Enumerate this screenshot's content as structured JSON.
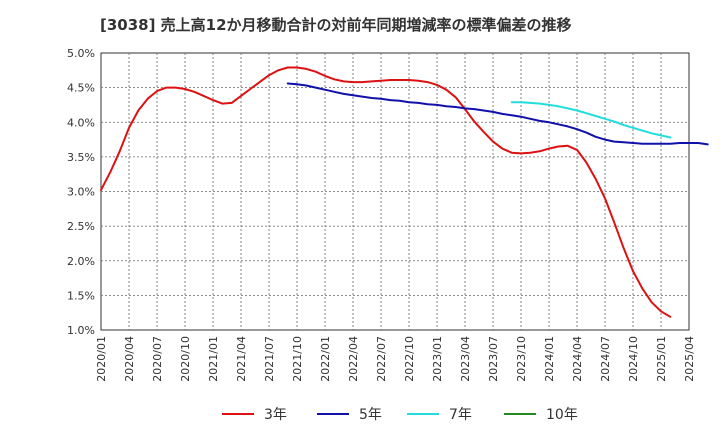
{
  "chart_data": {
    "type": "line",
    "title": "[3038]  売上高12か月移動合計の対前年同期増減率の標準偏差の推移",
    "xlabel": "",
    "ylabel": "",
    "x_ticks": [
      "2020/01",
      "2020/04",
      "2020/07",
      "2020/10",
      "2021/01",
      "2021/04",
      "2021/07",
      "2021/10",
      "2022/01",
      "2022/04",
      "2022/07",
      "2022/10",
      "2023/01",
      "2023/04",
      "2023/07",
      "2023/10",
      "2024/01",
      "2024/04",
      "2024/07",
      "2024/10",
      "2025/01",
      "2025/04"
    ],
    "y_ticks": [
      "1.0%",
      "1.5%",
      "2.0%",
      "2.5%",
      "3.0%",
      "3.5%",
      "4.0%",
      "4.5%",
      "5.0%"
    ],
    "ylim": [
      1.0,
      5.0
    ],
    "y_unit": "%",
    "grid": true,
    "legend_position": "bottom",
    "series": [
      {
        "name": "3年",
        "color": "#dd1111",
        "start": "2020/01",
        "values": [
          3.02,
          3.28,
          3.58,
          3.92,
          4.17,
          4.34,
          4.45,
          4.5,
          4.5,
          4.48,
          4.44,
          4.38,
          4.32,
          4.27,
          4.28,
          4.38,
          4.48,
          4.58,
          4.68,
          4.75,
          4.79,
          4.79,
          4.77,
          4.73,
          4.67,
          4.62,
          4.59,
          4.58,
          4.58,
          4.59,
          4.6,
          4.61,
          4.61,
          4.61,
          4.6,
          4.58,
          4.54,
          4.47,
          4.36,
          4.19,
          4.01,
          3.86,
          3.72,
          3.62,
          3.56,
          3.55,
          3.56,
          3.58,
          3.62,
          3.65,
          3.66,
          3.6,
          3.42,
          3.18,
          2.9,
          2.55,
          2.18,
          1.85,
          1.6,
          1.4,
          1.27,
          1.19
        ]
      },
      {
        "name": "5年",
        "color": "#1111aa",
        "start": "2021/09",
        "values": [
          4.56,
          4.55,
          4.53,
          4.5,
          4.47,
          4.44,
          4.41,
          4.39,
          4.37,
          4.35,
          4.34,
          4.32,
          4.31,
          4.29,
          4.28,
          4.26,
          4.25,
          4.23,
          4.22,
          4.2,
          4.19,
          4.17,
          4.15,
          4.12,
          4.1,
          4.08,
          4.05,
          4.02,
          4.0,
          3.97,
          3.94,
          3.9,
          3.85,
          3.79,
          3.75,
          3.72,
          3.71,
          3.7,
          3.69,
          3.69,
          3.69,
          3.69,
          3.7,
          3.7,
          3.7,
          3.68
        ]
      },
      {
        "name": "7年",
        "color": "#22dddd",
        "start": "2023/09",
        "values": [
          4.29,
          4.29,
          4.28,
          4.27,
          4.25,
          4.23,
          4.2,
          4.17,
          4.13,
          4.09,
          4.05,
          4.01,
          3.96,
          3.92,
          3.88,
          3.84,
          3.81,
          3.78
        ]
      },
      {
        "name": "10年",
        "color": "#228822",
        "start": "2025/01",
        "values": []
      }
    ]
  }
}
